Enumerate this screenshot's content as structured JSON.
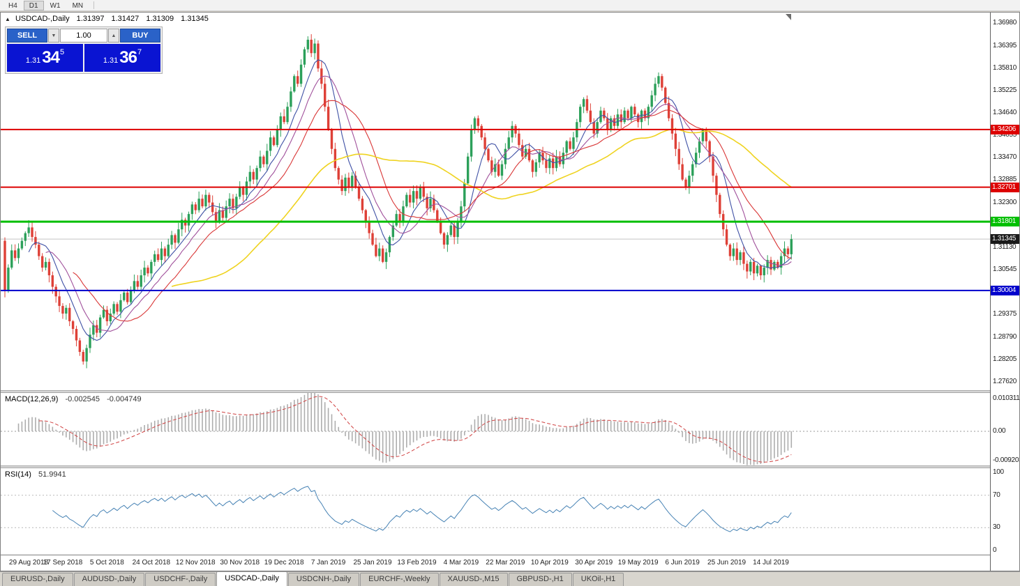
{
  "toolbar": {
    "buttons": [
      {
        "label": "H4",
        "active": false
      },
      {
        "label": "D1",
        "active": true
      },
      {
        "label": "W1",
        "active": false
      },
      {
        "label": "MN",
        "active": false
      }
    ]
  },
  "header": {
    "collapse_icon": "▲",
    "title": "USDCAD-,Daily",
    "open": "1.31397",
    "high": "1.31427",
    "low": "1.31309",
    "close": "1.31345"
  },
  "trade_panel": {
    "sell_label": "SELL",
    "buy_label": "BUY",
    "volume": "1.00",
    "volume_down_icon": "▼",
    "volume_up_icon": "▲",
    "sell_price_prefix": "1.31",
    "sell_price_big": "34",
    "sell_price_sup": "5",
    "buy_price_prefix": "1.31",
    "buy_price_big": "36",
    "buy_price_sup": "7"
  },
  "chart_data": {
    "type": "candlestick",
    "symbol": "USDCAD-",
    "timeframe": "Daily",
    "price_axis": {
      "min": 1.274,
      "max": 1.3726,
      "ticks": [
        "1.36980",
        "1.36395",
        "1.35810",
        "1.35225",
        "1.34640",
        "1.34055",
        "1.33470",
        "1.32885",
        "1.32300",
        "1.31715",
        "1.31130",
        "1.30545",
        "1.29960",
        "1.29375",
        "1.28790",
        "1.28205",
        "1.27620"
      ]
    },
    "candles": {
      "up_color": "#2CA05A",
      "down_color": "#DE4037",
      "first_open": 1.313,
      "closes": [
        1.3,
        1.306,
        1.3105,
        1.3085,
        1.311,
        1.313,
        1.315,
        1.3165,
        1.314,
        1.312,
        1.309,
        1.306,
        1.3075,
        1.304,
        1.301,
        1.2985,
        1.296,
        1.294,
        1.2955,
        1.292,
        1.29,
        1.287,
        1.284,
        1.2815,
        1.285,
        1.2885,
        1.291,
        1.289,
        1.293,
        1.295,
        1.292,
        1.294,
        1.2965,
        1.2945,
        1.2975,
        1.2995,
        1.297,
        1.3,
        1.3025,
        1.301,
        1.304,
        1.306,
        1.3045,
        1.3075,
        1.3095,
        1.308,
        1.311,
        1.309,
        1.312,
        1.3145,
        1.3125,
        1.316,
        1.3185,
        1.317,
        1.32,
        1.3225,
        1.321,
        1.324,
        1.322,
        1.325,
        1.323,
        1.3205,
        1.318,
        1.321,
        1.319,
        1.322,
        1.324,
        1.3215,
        1.3245,
        1.327,
        1.325,
        1.3285,
        1.331,
        1.329,
        1.332,
        1.335,
        1.333,
        1.3365,
        1.34,
        1.338,
        1.342,
        1.3455,
        1.344,
        1.348,
        1.352,
        1.356,
        1.354,
        1.359,
        1.363,
        1.3655,
        1.362,
        1.3645,
        1.358,
        1.354,
        1.348,
        1.342,
        1.337,
        1.332,
        1.329,
        1.326,
        1.3295,
        1.327,
        1.33,
        1.327,
        1.324,
        1.321,
        1.318,
        1.315,
        1.312,
        1.309,
        1.311,
        1.3075,
        1.31,
        1.314,
        1.317,
        1.32,
        1.318,
        1.322,
        1.325,
        1.323,
        1.326,
        1.324,
        1.327,
        1.3245,
        1.3215,
        1.324,
        1.321,
        1.318,
        1.315,
        1.312,
        1.3145,
        1.317,
        1.314,
        1.318,
        1.322,
        1.328,
        1.335,
        1.342,
        1.345,
        1.343,
        1.34,
        1.337,
        1.334,
        1.331,
        1.333,
        1.33,
        1.333,
        1.337,
        1.34,
        1.343,
        1.341,
        1.338,
        1.335,
        1.337,
        1.334,
        1.331,
        1.3335,
        1.336,
        1.334,
        1.332,
        1.3345,
        1.332,
        1.335,
        1.333,
        1.336,
        1.339,
        1.337,
        1.34,
        1.344,
        1.348,
        1.35,
        1.347,
        1.344,
        1.341,
        1.344,
        1.347,
        1.345,
        1.342,
        1.345,
        1.343,
        1.346,
        1.344,
        1.347,
        1.345,
        1.348,
        1.346,
        1.344,
        1.347,
        1.345,
        1.348,
        1.351,
        1.354,
        1.356,
        1.353,
        1.349,
        1.345,
        1.341,
        1.337,
        1.333,
        1.329,
        1.327,
        1.33,
        1.333,
        1.336,
        1.339,
        1.342,
        1.339,
        1.335,
        1.33,
        1.325,
        1.32,
        1.316,
        1.312,
        1.309,
        1.311,
        1.308,
        1.31,
        1.307,
        1.305,
        1.3075,
        1.3045,
        1.3065,
        1.304,
        1.306,
        1.308,
        1.3055,
        1.3075,
        1.306,
        1.309,
        1.311,
        1.3095,
        1.31345
      ]
    },
    "levels": [
      {
        "price": 1.34206,
        "label": "1.34206",
        "color": "#DD0000",
        "width": 2
      },
      {
        "price": 1.32701,
        "label": "1.32701",
        "color": "#DD0000",
        "width": 2
      },
      {
        "price": 1.31801,
        "label": "1.31801",
        "color": "#00BF00",
        "width": 3
      },
      {
        "price": 1.30004,
        "label": "1.30004",
        "color": "#0000CC",
        "width": 2
      }
    ],
    "current_price": {
      "price": 1.31345,
      "label": "1.31345",
      "badge_color": "#1a1a1a",
      "line_color": "#c4c4c4"
    },
    "moving_averages": [
      {
        "period": 8,
        "color": "#3F51A5",
        "width": 1.1
      },
      {
        "period": 13,
        "color": "#A0509B",
        "width": 1.1
      },
      {
        "period": 21,
        "color": "#D93636",
        "width": 1.1
      },
      {
        "period": 50,
        "color": "#EFD320",
        "width": 1.6
      }
    ],
    "date_labels": [
      {
        "i": 4,
        "label": "29 Aug 2018"
      },
      {
        "i": 17,
        "label": "17 Sep 2018"
      },
      {
        "i": 30,
        "label": "5 Oct 2018"
      },
      {
        "i": 43,
        "label": "24 Oct 2018"
      },
      {
        "i": 56,
        "label": "12 Nov 2018"
      },
      {
        "i": 69,
        "label": "30 Nov 2018"
      },
      {
        "i": 82,
        "label": "19 Dec 2018"
      },
      {
        "i": 95,
        "label": "7 Jan 2019"
      },
      {
        "i": 108,
        "label": "25 Jan 2019"
      },
      {
        "i": 121,
        "label": "13 Feb 2019"
      },
      {
        "i": 134,
        "label": "4 Mar 2019"
      },
      {
        "i": 147,
        "label": "22 Mar 2019"
      },
      {
        "i": 160,
        "label": "10 Apr 2019"
      },
      {
        "i": 173,
        "label": "30 Apr 2019"
      },
      {
        "i": 186,
        "label": "19 May 2019"
      },
      {
        "i": 199,
        "label": "6 Jun 2019"
      },
      {
        "i": 212,
        "label": "25 Jun 2019"
      },
      {
        "i": 225,
        "label": "14 Jul 2019"
      }
    ],
    "macd": {
      "label": "MACD(12,26,9)",
      "value_main": "-0.002545",
      "value_signal": "-0.004749",
      "fast": 12,
      "slow": 26,
      "signal": 9,
      "scale_max": 0.010311,
      "scale_min": -0.009203,
      "axis_labels": [
        "0.010311",
        "0.00",
        "-0.009203"
      ],
      "hist_color": "#ADADAD",
      "signal_color": "#D04040"
    },
    "rsi": {
      "label": "RSI(14)",
      "value": "51.9941",
      "period": 14,
      "axis_labels": [
        "100",
        "70",
        "30",
        "0"
      ],
      "levels": [
        70,
        30
      ],
      "line_color": "#4682B4"
    }
  },
  "tabs": [
    {
      "label": "EURUSD-,Daily",
      "active": false
    },
    {
      "label": "AUDUSD-,Daily",
      "active": false
    },
    {
      "label": "USDCHF-,Daily",
      "active": false
    },
    {
      "label": "USDCAD-,Daily",
      "active": true
    },
    {
      "label": "USDCNH-,Daily",
      "active": false
    },
    {
      "label": "EURCHF-,Weekly",
      "active": false
    },
    {
      "label": "XAUUSD-,M15",
      "active": false
    },
    {
      "label": "GBPUSD-,H1",
      "active": false
    },
    {
      "label": "UKOil-,H1",
      "active": false
    }
  ]
}
